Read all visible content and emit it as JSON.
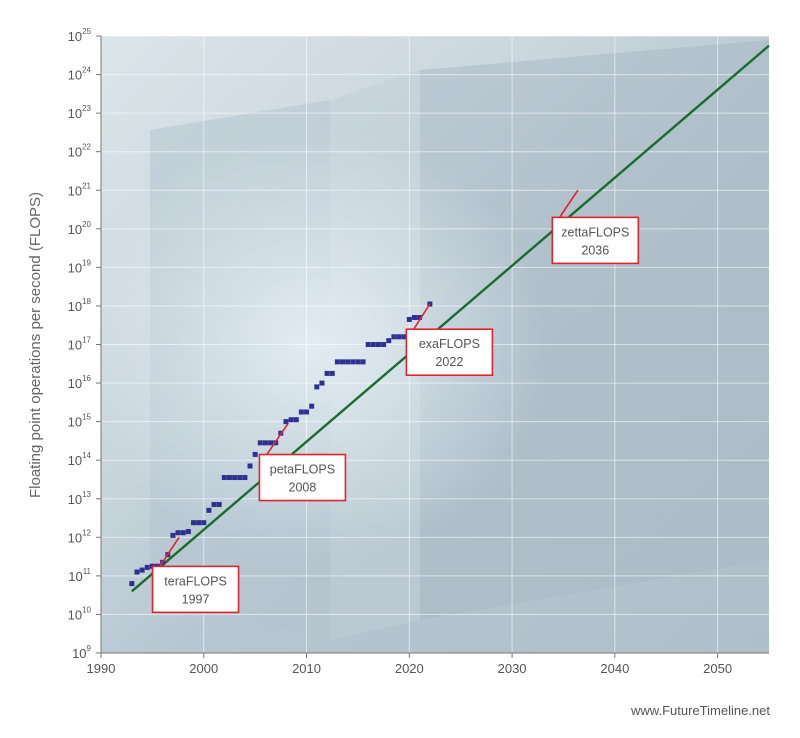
{
  "chart_data": {
    "type": "scatter",
    "title": "",
    "xlabel": "",
    "ylabel": "Floating point operations per second (FLOPS)",
    "y_scale": "log",
    "xlim": [
      1990,
      2055
    ],
    "ylim_exponent": [
      9,
      25
    ],
    "x_ticks": [
      {
        "value": 1990,
        "label": "1990"
      },
      {
        "value": 2000,
        "label": "2000"
      },
      {
        "value": 2010,
        "label": "2010"
      },
      {
        "value": 2020,
        "label": "2020"
      },
      {
        "value": 2030,
        "label": "2030"
      },
      {
        "value": 2040,
        "label": "2040"
      },
      {
        "value": 2050,
        "label": "2050"
      }
    ],
    "y_ticks": [
      {
        "exp": 9,
        "base": "10",
        "sup": "9"
      },
      {
        "exp": 10,
        "base": "10",
        "sup": "10"
      },
      {
        "exp": 11,
        "base": "10",
        "sup": "11"
      },
      {
        "exp": 12,
        "base": "10",
        "sup": "12"
      },
      {
        "exp": 13,
        "base": "10",
        "sup": "13"
      },
      {
        "exp": 14,
        "base": "10",
        "sup": "14"
      },
      {
        "exp": 15,
        "base": "10",
        "sup": "15"
      },
      {
        "exp": 16,
        "base": "10",
        "sup": "16"
      },
      {
        "exp": 17,
        "base": "10",
        "sup": "17"
      },
      {
        "exp": 18,
        "base": "10",
        "sup": "18"
      },
      {
        "exp": 19,
        "base": "10",
        "sup": "19"
      },
      {
        "exp": 20,
        "base": "10",
        "sup": "20"
      },
      {
        "exp": 21,
        "base": "10",
        "sup": "21"
      },
      {
        "exp": 22,
        "base": "10",
        "sup": "22"
      },
      {
        "exp": 23,
        "base": "10",
        "sup": "23"
      },
      {
        "exp": 24,
        "base": "10",
        "sup": "24"
      },
      {
        "exp": 25,
        "base": "10",
        "sup": "25"
      }
    ],
    "grid": true,
    "series": [
      {
        "kind": "scatter",
        "color": "#2e3192",
        "points": [
          [
            1993.0,
            10.8
          ],
          [
            1993.5,
            11.1
          ],
          [
            1994.0,
            11.15
          ],
          [
            1994.5,
            11.22
          ],
          [
            1995.0,
            11.25
          ],
          [
            1995.5,
            11.25
          ],
          [
            1996.0,
            11.35
          ],
          [
            1996.5,
            11.55
          ],
          [
            1997.0,
            12.05
          ],
          [
            1997.5,
            12.12
          ],
          [
            1998.0,
            12.12
          ],
          [
            1998.5,
            12.15
          ],
          [
            1999.0,
            12.38
          ],
          [
            1999.5,
            12.38
          ],
          [
            2000.0,
            12.38
          ],
          [
            2000.5,
            12.7
          ],
          [
            2001.0,
            12.85
          ],
          [
            2001.5,
            12.85
          ],
          [
            2002.0,
            13.55
          ],
          [
            2002.5,
            13.55
          ],
          [
            2003.0,
            13.55
          ],
          [
            2003.5,
            13.55
          ],
          [
            2004.0,
            13.55
          ],
          [
            2004.5,
            13.85
          ],
          [
            2005.0,
            14.15
          ],
          [
            2005.5,
            14.45
          ],
          [
            2006.0,
            14.45
          ],
          [
            2006.5,
            14.45
          ],
          [
            2007.0,
            14.45
          ],
          [
            2007.5,
            14.7
          ],
          [
            2008.0,
            15.0
          ],
          [
            2008.5,
            15.05
          ],
          [
            2009.0,
            15.05
          ],
          [
            2009.5,
            15.25
          ],
          [
            2010.0,
            15.25
          ],
          [
            2010.5,
            15.4
          ],
          [
            2011.0,
            15.9
          ],
          [
            2011.5,
            16.0
          ],
          [
            2012.0,
            16.25
          ],
          [
            2012.5,
            16.25
          ],
          [
            2013.0,
            16.55
          ],
          [
            2013.5,
            16.55
          ],
          [
            2014.0,
            16.55
          ],
          [
            2014.5,
            16.55
          ],
          [
            2015.0,
            16.55
          ],
          [
            2015.5,
            16.55
          ],
          [
            2016.0,
            17.0
          ],
          [
            2016.5,
            17.0
          ],
          [
            2017.0,
            17.0
          ],
          [
            2017.5,
            17.0
          ],
          [
            2018.0,
            17.1
          ],
          [
            2018.5,
            17.2
          ],
          [
            2019.0,
            17.2
          ],
          [
            2019.5,
            17.2
          ],
          [
            2020.0,
            17.65
          ],
          [
            2020.5,
            17.7
          ],
          [
            2021.0,
            17.7
          ],
          [
            2022.0,
            18.05
          ]
        ]
      },
      {
        "kind": "line",
        "color": "#1a6b2e",
        "x": [
          1993.0,
          2055.0
        ],
        "exp": [
          10.6,
          24.75
        ]
      }
    ],
    "annotations": [
      {
        "name": "teraflops",
        "line1": "teraFLOPS",
        "line2": "1997",
        "anchor_x": 1997.6,
        "anchor_exp": 12.0,
        "box_cx": 1999.2,
        "box_exp": 10.65
      },
      {
        "name": "petaflops",
        "line1": "petaFLOPS",
        "line2": "2008",
        "anchor_x": 2008.2,
        "anchor_exp": 14.95,
        "box_cx": 2009.6,
        "box_exp": 13.55
      },
      {
        "name": "exaflops",
        "line1": "exaFLOPS",
        "line2": "2022",
        "anchor_x": 2022.0,
        "anchor_exp": 18.05,
        "box_cx": 2023.9,
        "box_exp": 16.8
      },
      {
        "name": "zettaflops",
        "line1": "zettaFLOPS",
        "line2": "2036",
        "anchor_x": 2036.4,
        "anchor_exp": 21.0,
        "box_cx": 2038.1,
        "box_exp": 19.7
      }
    ]
  },
  "footer": {
    "credit": "www.FutureTimeline.net"
  }
}
